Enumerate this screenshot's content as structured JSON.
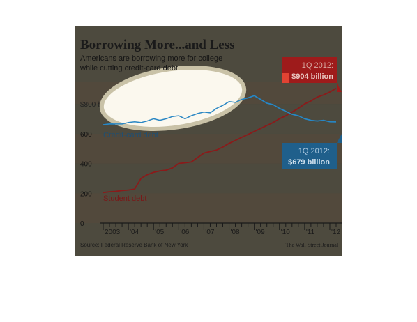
{
  "chart_data": {
    "type": "line",
    "title": "Borrowing More...and Less",
    "subtitle": "Americans are borrowing more for college while cutting credit-card debt.",
    "subtitle_lines": [
      "Americans are borrowing more for college",
      "while cutting credit-card debt."
    ],
    "source": "Source: Federal Reserve Bank of New York",
    "credit": "The Wall Street Journal",
    "xlim": [
      2003,
      2012.25
    ],
    "ylim": [
      0,
      950
    ],
    "y_ticks": [
      {
        "value": 0,
        "label": "0"
      },
      {
        "value": 200,
        "label": "200"
      },
      {
        "value": 400,
        "label": "400"
      },
      {
        "value": 600,
        "label": "600"
      },
      {
        "value": 800,
        "label": "$800 billion"
      }
    ],
    "x_ticks": [
      {
        "value": 2003,
        "label": "2003"
      },
      {
        "value": 2004,
        "label": "'04"
      },
      {
        "value": 2005,
        "label": "'05"
      },
      {
        "value": 2006,
        "label": "'06"
      },
      {
        "value": 2007,
        "label": "'07"
      },
      {
        "value": 2008,
        "label": "'08"
      },
      {
        "value": 2009,
        "label": "'09"
      },
      {
        "value": 2010,
        "label": "'10"
      },
      {
        "value": 2011,
        "label": "'11"
      },
      {
        "value": 2012,
        "label": "'12"
      }
    ],
    "series": [
      {
        "name": "Credit-card debt",
        "color": "#1a6d9c",
        "x": [
          2003.0,
          2003.25,
          2003.5,
          2003.75,
          2004.0,
          2004.25,
          2004.5,
          2004.75,
          2005.0,
          2005.25,
          2005.5,
          2005.75,
          2006.0,
          2006.25,
          2006.5,
          2006.75,
          2007.0,
          2007.25,
          2007.5,
          2007.75,
          2008.0,
          2008.25,
          2008.5,
          2008.75,
          2009.0,
          2009.25,
          2009.5,
          2009.75,
          2010.0,
          2010.25,
          2010.5,
          2010.75,
          2011.0,
          2011.25,
          2011.5,
          2011.75,
          2012.0,
          2012.25
        ],
        "y": [
          660,
          665,
          665,
          665,
          675,
          680,
          675,
          685,
          700,
          690,
          700,
          715,
          720,
          700,
          720,
          735,
          745,
          740,
          770,
          790,
          815,
          810,
          830,
          840,
          855,
          830,
          805,
          795,
          770,
          750,
          730,
          720,
          700,
          690,
          685,
          690,
          680,
          679
        ]
      },
      {
        "name": "Student debt",
        "color": "#8b1a1a",
        "x": [
          2003.0,
          2003.25,
          2003.5,
          2003.75,
          2004.0,
          2004.25,
          2004.5,
          2004.75,
          2005.0,
          2005.25,
          2005.5,
          2005.75,
          2006.0,
          2006.25,
          2006.5,
          2006.75,
          2007.0,
          2007.25,
          2007.5,
          2007.75,
          2008.0,
          2008.25,
          2008.5,
          2008.75,
          2009.0,
          2009.25,
          2009.5,
          2009.75,
          2010.0,
          2010.25,
          2010.5,
          2010.75,
          2011.0,
          2011.25,
          2011.5,
          2011.75,
          2012.0,
          2012.25
        ],
        "y": [
          205,
          210,
          213,
          218,
          222,
          228,
          300,
          325,
          340,
          350,
          355,
          370,
          400,
          405,
          410,
          440,
          470,
          480,
          490,
          510,
          535,
          555,
          575,
          595,
          615,
          635,
          655,
          675,
          700,
          720,
          745,
          770,
          800,
          820,
          845,
          860,
          880,
          904
        ]
      }
    ],
    "annotations": [
      {
        "text_lines": [
          "1Q 2012:",
          "$904 billion"
        ],
        "color": "#9e1b1b"
      },
      {
        "text_lines": [
          "1Q 2012:",
          "$679 billion"
        ],
        "color": "#1f5f8b"
      }
    ],
    "grid": "alternating horizontal bands"
  }
}
